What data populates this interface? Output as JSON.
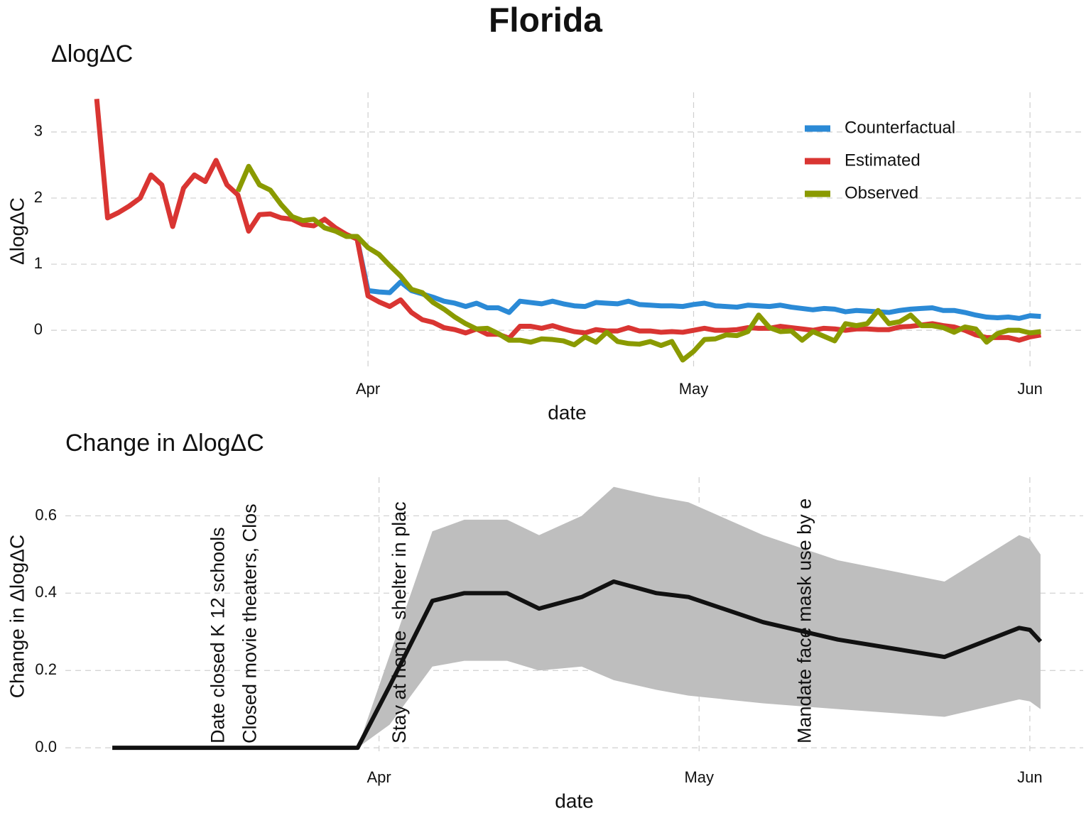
{
  "title": "Florida",
  "chart_data": [
    {
      "type": "line",
      "title": "ΔlogΔC",
      "xlabel": "date",
      "ylabel": "ΔlogΔC",
      "x": [
        67,
        68,
        69,
        70,
        71,
        72,
        73,
        74,
        75,
        76,
        77,
        78,
        79,
        80,
        81,
        82,
        83,
        84,
        85,
        86,
        87,
        88,
        89,
        90,
        91,
        92,
        93,
        94,
        95,
        96,
        97,
        98,
        99,
        100,
        101,
        102,
        103,
        104,
        105,
        106,
        107,
        108,
        109,
        110,
        111,
        112,
        113,
        114,
        115,
        116,
        117,
        118,
        119,
        120,
        121,
        122,
        123,
        124,
        125,
        126,
        127,
        128,
        129,
        130,
        131,
        132,
        133,
        134,
        135,
        136,
        137,
        138,
        139,
        140,
        141,
        142,
        143,
        144,
        145,
        146,
        147,
        148,
        149,
        150,
        151,
        152,
        153,
        154
      ],
      "xlim": [
        62.8,
        157.9
      ],
      "xticks": [
        {
          "value": 92,
          "label": "Apr"
        },
        {
          "value": 122,
          "label": "May"
        },
        {
          "value": 153,
          "label": "Jun"
        }
      ],
      "ylim": [
        -0.6,
        3.6
      ],
      "yticks": [
        0,
        1,
        2,
        3
      ],
      "grid": true,
      "legend": "top-right",
      "series": [
        {
          "name": "Counterfactual",
          "color": "#2b8ad6",
          "values": [
            null,
            null,
            null,
            null,
            null,
            null,
            null,
            null,
            null,
            null,
            null,
            null,
            null,
            null,
            null,
            null,
            null,
            null,
            null,
            null,
            null,
            null,
            null,
            null,
            1.38,
            0.6,
            0.58,
            0.57,
            0.73,
            0.6,
            0.55,
            0.5,
            0.44,
            0.41,
            0.36,
            0.41,
            0.34,
            0.34,
            0.27,
            0.44,
            0.42,
            0.4,
            0.44,
            0.4,
            0.37,
            0.36,
            0.42,
            0.41,
            0.4,
            0.44,
            0.39,
            0.38,
            0.37,
            0.37,
            0.36,
            0.39,
            0.41,
            0.37,
            0.36,
            0.35,
            0.38,
            0.37,
            0.36,
            0.38,
            0.35,
            0.33,
            0.31,
            0.33,
            0.32,
            0.28,
            0.3,
            0.29,
            0.28,
            0.27,
            0.3,
            0.32,
            0.33,
            0.34,
            0.3,
            0.3,
            0.27,
            0.23,
            0.2,
            0.19,
            0.2,
            0.18,
            0.22,
            0.21
          ]
        },
        {
          "name": "Estimated",
          "color": "#d93532",
          "values": [
            3.5,
            1.7,
            1.78,
            1.88,
            2.0,
            2.35,
            2.2,
            1.57,
            2.15,
            2.35,
            2.25,
            2.57,
            2.2,
            2.05,
            1.5,
            1.75,
            1.76,
            1.7,
            1.68,
            1.6,
            1.58,
            1.68,
            1.55,
            1.45,
            1.38,
            0.52,
            0.43,
            0.36,
            0.46,
            0.27,
            0.16,
            0.12,
            0.04,
            0.01,
            -0.04,
            0.02,
            -0.06,
            -0.06,
            -0.12,
            0.06,
            0.06,
            0.03,
            0.07,
            0.02,
            -0.02,
            -0.04,
            0.01,
            -0.01,
            -0.01,
            0.04,
            -0.01,
            -0.01,
            -0.03,
            -0.02,
            -0.03,
            0.0,
            0.03,
            0.0,
            0.0,
            0.01,
            0.04,
            0.03,
            0.03,
            0.06,
            0.04,
            0.02,
            0.0,
            0.03,
            0.02,
            0.0,
            0.02,
            0.02,
            0.01,
            0.01,
            0.05,
            0.06,
            0.08,
            0.1,
            0.07,
            0.05,
            0.0,
            -0.07,
            -0.11,
            -0.11,
            -0.11,
            -0.15,
            -0.1,
            -0.07
          ]
        },
        {
          "name": "Observed",
          "color": "#8a9a00",
          "values": [
            null,
            null,
            null,
            null,
            null,
            null,
            null,
            null,
            null,
            null,
            null,
            null,
            null,
            2.1,
            2.48,
            2.2,
            2.12,
            1.9,
            1.72,
            1.66,
            1.68,
            1.55,
            1.5,
            1.42,
            1.42,
            1.25,
            1.15,
            0.98,
            0.82,
            0.62,
            0.57,
            0.42,
            0.32,
            0.2,
            0.1,
            0.02,
            0.03,
            -0.05,
            -0.15,
            -0.15,
            -0.18,
            -0.13,
            -0.14,
            -0.16,
            -0.22,
            -0.1,
            -0.18,
            -0.03,
            -0.17,
            -0.2,
            -0.21,
            -0.17,
            -0.23,
            -0.17,
            -0.45,
            -0.32,
            -0.14,
            -0.13,
            -0.07,
            -0.08,
            -0.02,
            0.23,
            0.04,
            -0.02,
            -0.01,
            -0.15,
            -0.02,
            -0.09,
            -0.16,
            0.1,
            0.07,
            0.1,
            0.3,
            0.1,
            0.13,
            0.23,
            0.07,
            0.07,
            0.04,
            -0.03,
            0.05,
            0.02,
            -0.18,
            -0.05,
            0.0,
            0.0,
            -0.04,
            -0.02
          ]
        }
      ]
    },
    {
      "type": "line",
      "title": "Change in ΔlogΔC",
      "xlabel": "date",
      "ylabel": "Change in ΔlogΔC",
      "x": [
        67,
        90,
        93,
        97,
        100,
        104,
        107,
        111,
        114,
        118,
        121,
        128,
        135,
        145,
        152,
        153,
        154
      ],
      "xlim": [
        62.6,
        158
      ],
      "xticks": [
        {
          "value": 92,
          "label": "Apr"
        },
        {
          "value": 122,
          "label": "May"
        },
        {
          "value": 153,
          "label": "Jun"
        }
      ],
      "ylim": [
        -0.02,
        0.7
      ],
      "yticks": [
        {
          "value": 0,
          "label": "0.0"
        },
        0.2,
        0.4,
        0.6
      ],
      "grid": true,
      "band": {
        "color": "#bebebe",
        "lower": [
          0,
          0,
          0.06,
          0.21,
          0.225,
          0.225,
          0.2,
          0.21,
          0.175,
          0.15,
          0.135,
          0.115,
          0.1,
          0.08,
          0.125,
          0.12,
          0.1
        ],
        "upper": [
          0,
          0,
          0.24,
          0.56,
          0.59,
          0.59,
          0.55,
          0.6,
          0.675,
          0.65,
          0.635,
          0.55,
          0.485,
          0.43,
          0.55,
          0.54,
          0.5
        ]
      },
      "series": [
        {
          "color": "#111111",
          "values": [
            0,
            0,
            0.16,
            0.38,
            0.4,
            0.4,
            0.36,
            0.39,
            0.43,
            0.4,
            0.39,
            0.325,
            0.28,
            0.235,
            0.31,
            0.305,
            0.275
          ]
        }
      ],
      "annotations": [
        {
          "text": "Date closed K 12 schools",
          "x": 77
        },
        {
          "text": "Closed movie theaters, Clos",
          "x": 80
        },
        {
          "text": "Stay at home  shelter in plac",
          "x": 94
        },
        {
          "text": "Mandate face mask use by e",
          "x": 132
        }
      ]
    }
  ]
}
